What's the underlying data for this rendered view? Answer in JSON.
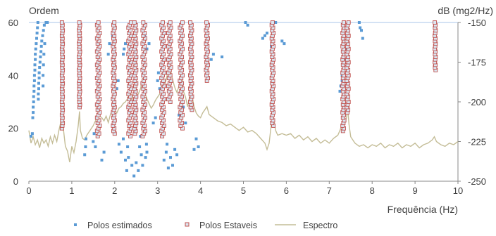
{
  "chart_data": {
    "type": "scatter",
    "title": "",
    "xlabel": "Frequência (Hz)",
    "ylabel_left": "Ordem",
    "ylabel_right": "dB (mg2/Hz)",
    "xlim": [
      0,
      10
    ],
    "ylim_left": [
      0,
      60
    ],
    "ylim_right": [
      -250,
      -150
    ],
    "x_ticks": [
      "0",
      "1",
      "2",
      "3",
      "4",
      "5",
      "6",
      "7",
      "8",
      "9",
      "10"
    ],
    "y_left_ticks": [
      "0",
      "20",
      "40",
      "60"
    ],
    "y_right_ticks": [
      "-150",
      "-175",
      "-200",
      "-225",
      "-250"
    ],
    "legend_position": "bottom",
    "colors": {
      "estimated": "#5b9bd5",
      "stable_edge": "#c0504d",
      "stable_fill": "#dbe6f1",
      "spectrum": "#c4bd97",
      "axis": "#888888"
    },
    "legend": [
      {
        "key": "estimated",
        "label": "Polos estimados"
      },
      {
        "key": "stable",
        "label": "Polos Estaveis"
      },
      {
        "key": "spectrum",
        "label": "Espectro"
      }
    ],
    "stable_columns": [
      {
        "x": 0.78,
        "from": 20,
        "to": 60,
        "jitter": 0.01
      },
      {
        "x": 1.18,
        "from": 28,
        "to": 60,
        "jitter": 0.01
      },
      {
        "x": 1.62,
        "from": 17,
        "to": 60,
        "jitter": 0.03
      },
      {
        "x": 1.98,
        "from": 18,
        "to": 60,
        "jitter": 0.02
      },
      {
        "x": 2.35,
        "from": 17,
        "to": 60,
        "jitter": 0.03
      },
      {
        "x": 2.48,
        "from": 18,
        "to": 60,
        "jitter": 0.02
      },
      {
        "x": 2.68,
        "from": 17,
        "to": 60,
        "jitter": 0.03
      },
      {
        "x": 3.12,
        "from": 17,
        "to": 60,
        "jitter": 0.03
      },
      {
        "x": 3.28,
        "from": 30,
        "to": 60,
        "jitter": 0.03
      },
      {
        "x": 3.55,
        "from": 20,
        "to": 60,
        "jitter": 0.03
      },
      {
        "x": 3.78,
        "from": 27,
        "to": 60,
        "jitter": 0.02
      },
      {
        "x": 4.15,
        "from": 38,
        "to": 60,
        "jitter": 0.02
      },
      {
        "x": 5.68,
        "from": 21,
        "to": 60,
        "jitter": 0.02
      },
      {
        "x": 7.33,
        "from": 19,
        "to": 60,
        "jitter": 0.02
      },
      {
        "x": 7.43,
        "from": 26,
        "to": 60,
        "jitter": 0.02
      },
      {
        "x": 9.47,
        "from": 42,
        "to": 60,
        "jitter": 0.01
      }
    ],
    "estimated_points": [
      [
        0.08,
        18
      ],
      [
        0.09,
        24
      ],
      [
        0.1,
        26
      ],
      [
        0.1,
        28
      ],
      [
        0.11,
        30
      ],
      [
        0.11,
        32
      ],
      [
        0.12,
        34
      ],
      [
        0.12,
        36
      ],
      [
        0.13,
        38
      ],
      [
        0.13,
        40
      ],
      [
        0.14,
        42
      ],
      [
        0.14,
        44
      ],
      [
        0.15,
        46
      ],
      [
        0.15,
        48
      ],
      [
        0.16,
        50
      ],
      [
        0.17,
        52
      ],
      [
        0.18,
        54
      ],
      [
        0.19,
        56
      ],
      [
        0.2,
        58
      ],
      [
        0.21,
        60
      ],
      [
        0.22,
        31
      ],
      [
        0.22,
        33
      ],
      [
        0.23,
        35
      ],
      [
        0.23,
        37
      ],
      [
        0.24,
        39
      ],
      [
        0.24,
        41
      ],
      [
        0.25,
        43
      ],
      [
        0.26,
        45
      ],
      [
        0.27,
        47
      ],
      [
        0.28,
        49
      ],
      [
        0.29,
        51
      ],
      [
        0.3,
        53
      ],
      [
        0.32,
        55
      ],
      [
        0.34,
        57
      ],
      [
        0.36,
        59
      ],
      [
        0.4,
        60
      ],
      [
        0.43,
        60
      ],
      [
        0.33,
        36
      ],
      [
        0.33,
        40
      ],
      [
        0.34,
        44
      ],
      [
        0.35,
        48
      ],
      [
        0.37,
        52
      ],
      [
        1.3,
        10
      ],
      [
        1.32,
        13
      ],
      [
        1.33,
        16
      ],
      [
        1.5,
        15
      ],
      [
        1.52,
        18
      ],
      [
        1.55,
        13
      ],
      [
        1.7,
        8
      ],
      [
        1.75,
        11
      ],
      [
        1.85,
        48
      ],
      [
        1.88,
        52
      ],
      [
        1.95,
        55
      ],
      [
        2.05,
        35
      ],
      [
        2.08,
        38
      ],
      [
        2.1,
        14
      ],
      [
        2.15,
        11
      ],
      [
        2.2,
        16
      ],
      [
        2.25,
        8
      ],
      [
        2.28,
        4
      ],
      [
        2.3,
        13
      ],
      [
        2.32,
        9
      ],
      [
        2.4,
        6
      ],
      [
        2.45,
        2
      ],
      [
        2.5,
        7
      ],
      [
        2.55,
        4
      ],
      [
        2.58,
        13
      ],
      [
        2.6,
        17
      ],
      [
        2.62,
        10
      ],
      [
        2.65,
        6
      ],
      [
        2.72,
        9
      ],
      [
        2.74,
        14
      ],
      [
        2.75,
        11
      ],
      [
        2.2,
        48
      ],
      [
        2.22,
        50
      ],
      [
        2.25,
        52
      ],
      [
        2.9,
        22
      ],
      [
        2.95,
        24
      ],
      [
        2.7,
        55
      ],
      [
        2.8,
        52
      ],
      [
        2.75,
        50
      ],
      [
        3.0,
        38
      ],
      [
        3.02,
        41
      ],
      [
        3.05,
        35
      ],
      [
        3.15,
        8
      ],
      [
        3.2,
        11
      ],
      [
        3.22,
        14
      ],
      [
        3.25,
        5
      ],
      [
        3.3,
        9
      ],
      [
        3.35,
        6
      ],
      [
        3.4,
        12
      ],
      [
        3.45,
        10
      ],
      [
        3.5,
        25
      ],
      [
        3.6,
        28
      ],
      [
        3.65,
        22
      ],
      [
        3.85,
        12
      ],
      [
        3.9,
        16
      ],
      [
        3.95,
        13
      ],
      [
        4.25,
        46
      ],
      [
        4.3,
        48
      ],
      [
        4.5,
        47
      ],
      [
        5.05,
        60
      ],
      [
        5.1,
        59
      ],
      [
        5.45,
        54
      ],
      [
        5.5,
        55
      ],
      [
        5.55,
        56
      ],
      [
        5.65,
        51
      ],
      [
        5.9,
        53
      ],
      [
        5.95,
        52
      ],
      [
        5.75,
        60
      ],
      [
        7.25,
        34
      ],
      [
        7.27,
        36
      ],
      [
        7.3,
        38
      ],
      [
        7.3,
        40
      ],
      [
        7.32,
        42
      ],
      [
        7.35,
        46
      ],
      [
        7.4,
        50
      ],
      [
        7.7,
        60
      ],
      [
        7.72,
        58
      ],
      [
        7.75,
        57
      ],
      [
        7.78,
        54
      ],
      [
        0.05,
        17
      ]
    ],
    "spectrum": [
      [
        0,
        -218
      ],
      [
        0.05,
        -226
      ],
      [
        0.1,
        -222
      ],
      [
        0.15,
        -227
      ],
      [
        0.2,
        -224
      ],
      [
        0.25,
        -229
      ],
      [
        0.3,
        -223
      ],
      [
        0.35,
        -226
      ],
      [
        0.4,
        -224
      ],
      [
        0.45,
        -228
      ],
      [
        0.5,
        -222
      ],
      [
        0.55,
        -226
      ],
      [
        0.6,
        -221
      ],
      [
        0.65,
        -225
      ],
      [
        0.7,
        -218
      ],
      [
        0.75,
        -212
      ],
      [
        0.78,
        -204
      ],
      [
        0.8,
        -216
      ],
      [
        0.85,
        -228
      ],
      [
        0.9,
        -231
      ],
      [
        0.95,
        -238
      ],
      [
        1.0,
        -228
      ],
      [
        1.05,
        -232
      ],
      [
        1.1,
        -225
      ],
      [
        1.15,
        -215
      ],
      [
        1.18,
        -206
      ],
      [
        1.2,
        -218
      ],
      [
        1.25,
        -223
      ],
      [
        1.3,
        -224
      ],
      [
        1.35,
        -221
      ],
      [
        1.4,
        -219
      ],
      [
        1.45,
        -217
      ],
      [
        1.5,
        -215
      ],
      [
        1.55,
        -212
      ],
      [
        1.6,
        -210
      ],
      [
        1.62,
        -203
      ],
      [
        1.65,
        -209
      ],
      [
        1.7,
        -210
      ],
      [
        1.75,
        -212
      ],
      [
        1.8,
        -209
      ],
      [
        1.85,
        -213
      ],
      [
        1.9,
        -208
      ],
      [
        1.95,
        -205
      ],
      [
        1.98,
        -199
      ],
      [
        2.0,
        -205
      ],
      [
        2.05,
        -207
      ],
      [
        2.1,
        -204
      ],
      [
        2.15,
        -203
      ],
      [
        2.2,
        -201
      ],
      [
        2.25,
        -200
      ],
      [
        2.3,
        -198
      ],
      [
        2.35,
        -191
      ],
      [
        2.4,
        -199
      ],
      [
        2.45,
        -193
      ],
      [
        2.5,
        -197
      ],
      [
        2.55,
        -195
      ],
      [
        2.6,
        -192
      ],
      [
        2.65,
        -185
      ],
      [
        2.7,
        -194
      ],
      [
        2.75,
        -198
      ],
      [
        2.8,
        -201
      ],
      [
        2.85,
        -204
      ],
      [
        2.9,
        -202
      ],
      [
        2.95,
        -199
      ],
      [
        3.0,
        -197
      ],
      [
        3.05,
        -195
      ],
      [
        3.1,
        -190
      ],
      [
        3.12,
        -182
      ],
      [
        3.15,
        -190
      ],
      [
        3.2,
        -186
      ],
      [
        3.25,
        -180
      ],
      [
        3.28,
        -173
      ],
      [
        3.3,
        -180
      ],
      [
        3.35,
        -186
      ],
      [
        3.4,
        -191
      ],
      [
        3.45,
        -194
      ],
      [
        3.5,
        -190
      ],
      [
        3.55,
        -181
      ],
      [
        3.58,
        -187
      ],
      [
        3.6,
        -193
      ],
      [
        3.65,
        -197
      ],
      [
        3.7,
        -203
      ],
      [
        3.75,
        -196
      ],
      [
        3.78,
        -188
      ],
      [
        3.8,
        -196
      ],
      [
        3.85,
        -203
      ],
      [
        3.9,
        -207
      ],
      [
        3.95,
        -209
      ],
      [
        4.0,
        -210
      ],
      [
        4.05,
        -207
      ],
      [
        4.1,
        -205
      ],
      [
        4.15,
        -203
      ],
      [
        4.2,
        -208
      ],
      [
        4.3,
        -210
      ],
      [
        4.4,
        -212
      ],
      [
        4.5,
        -213
      ],
      [
        4.6,
        -215
      ],
      [
        4.7,
        -214
      ],
      [
        4.8,
        -216
      ],
      [
        4.9,
        -218
      ],
      [
        5.0,
        -216
      ],
      [
        5.1,
        -219
      ],
      [
        5.2,
        -218
      ],
      [
        5.3,
        -220
      ],
      [
        5.4,
        -223
      ],
      [
        5.5,
        -226
      ],
      [
        5.55,
        -230
      ],
      [
        5.6,
        -226
      ],
      [
        5.65,
        -214
      ],
      [
        5.68,
        -204
      ],
      [
        5.7,
        -210
      ],
      [
        5.75,
        -218
      ],
      [
        5.8,
        -221
      ],
      [
        5.9,
        -220
      ],
      [
        6.0,
        -221
      ],
      [
        6.1,
        -220
      ],
      [
        6.2,
        -223
      ],
      [
        6.3,
        -221
      ],
      [
        6.4,
        -224
      ],
      [
        6.5,
        -222
      ],
      [
        6.6,
        -225
      ],
      [
        6.7,
        -223
      ],
      [
        6.8,
        -226
      ],
      [
        6.9,
        -224
      ],
      [
        7.0,
        -226
      ],
      [
        7.1,
        -223
      ],
      [
        7.2,
        -221
      ],
      [
        7.25,
        -218
      ],
      [
        7.3,
        -214
      ],
      [
        7.33,
        -206
      ],
      [
        7.36,
        -214
      ],
      [
        7.4,
        -210
      ],
      [
        7.43,
        -204
      ],
      [
        7.46,
        -214
      ],
      [
        7.5,
        -222
      ],
      [
        7.6,
        -226
      ],
      [
        7.7,
        -228
      ],
      [
        7.8,
        -227
      ],
      [
        7.9,
        -229
      ],
      [
        8.0,
        -227
      ],
      [
        8.1,
        -228
      ],
      [
        8.2,
        -226
      ],
      [
        8.3,
        -229
      ],
      [
        8.4,
        -227
      ],
      [
        8.5,
        -228
      ],
      [
        8.6,
        -226
      ],
      [
        8.7,
        -229
      ],
      [
        8.8,
        -227
      ],
      [
        8.9,
        -228
      ],
      [
        9.0,
        -226
      ],
      [
        9.1,
        -229
      ],
      [
        9.2,
        -227
      ],
      [
        9.3,
        -226
      ],
      [
        9.4,
        -224
      ],
      [
        9.45,
        -222
      ],
      [
        9.5,
        -225
      ],
      [
        9.6,
        -227
      ],
      [
        9.7,
        -228
      ],
      [
        9.8,
        -226
      ],
      [
        9.9,
        -227
      ],
      [
        10.0,
        -225
      ]
    ]
  }
}
